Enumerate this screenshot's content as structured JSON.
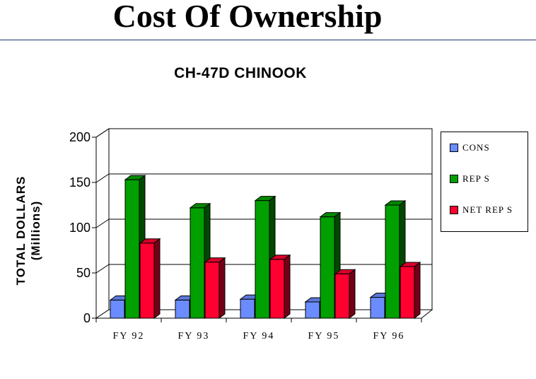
{
  "page": {
    "title": "Cost Of Ownership"
  },
  "colors": {
    "cons": "#6b8cff",
    "reps": "#00a000",
    "net_reps": "#ff0030"
  },
  "chart_data": {
    "type": "bar",
    "title": "CH-47D CHINOOK",
    "ylabel": [
      "TOTAL DOLLARS",
      "(Millions)"
    ],
    "xlabel": "",
    "categories": [
      "FY 92",
      "FY 93",
      "FY 94",
      "FY 95",
      "FY 96"
    ],
    "series": [
      {
        "name": "CONS",
        "values": [
          20,
          20,
          21,
          18,
          23
        ]
      },
      {
        "name": "REP S",
        "values": [
          153,
          122,
          130,
          112,
          125
        ]
      },
      {
        "name": "NET REP S",
        "values": [
          83,
          62,
          65,
          49,
          57
        ]
      }
    ],
    "ylim": [
      0,
      200
    ],
    "yticks": [
      0,
      50,
      100,
      150,
      200
    ],
    "grid": true,
    "legend_position": "right",
    "three_d": true
  }
}
